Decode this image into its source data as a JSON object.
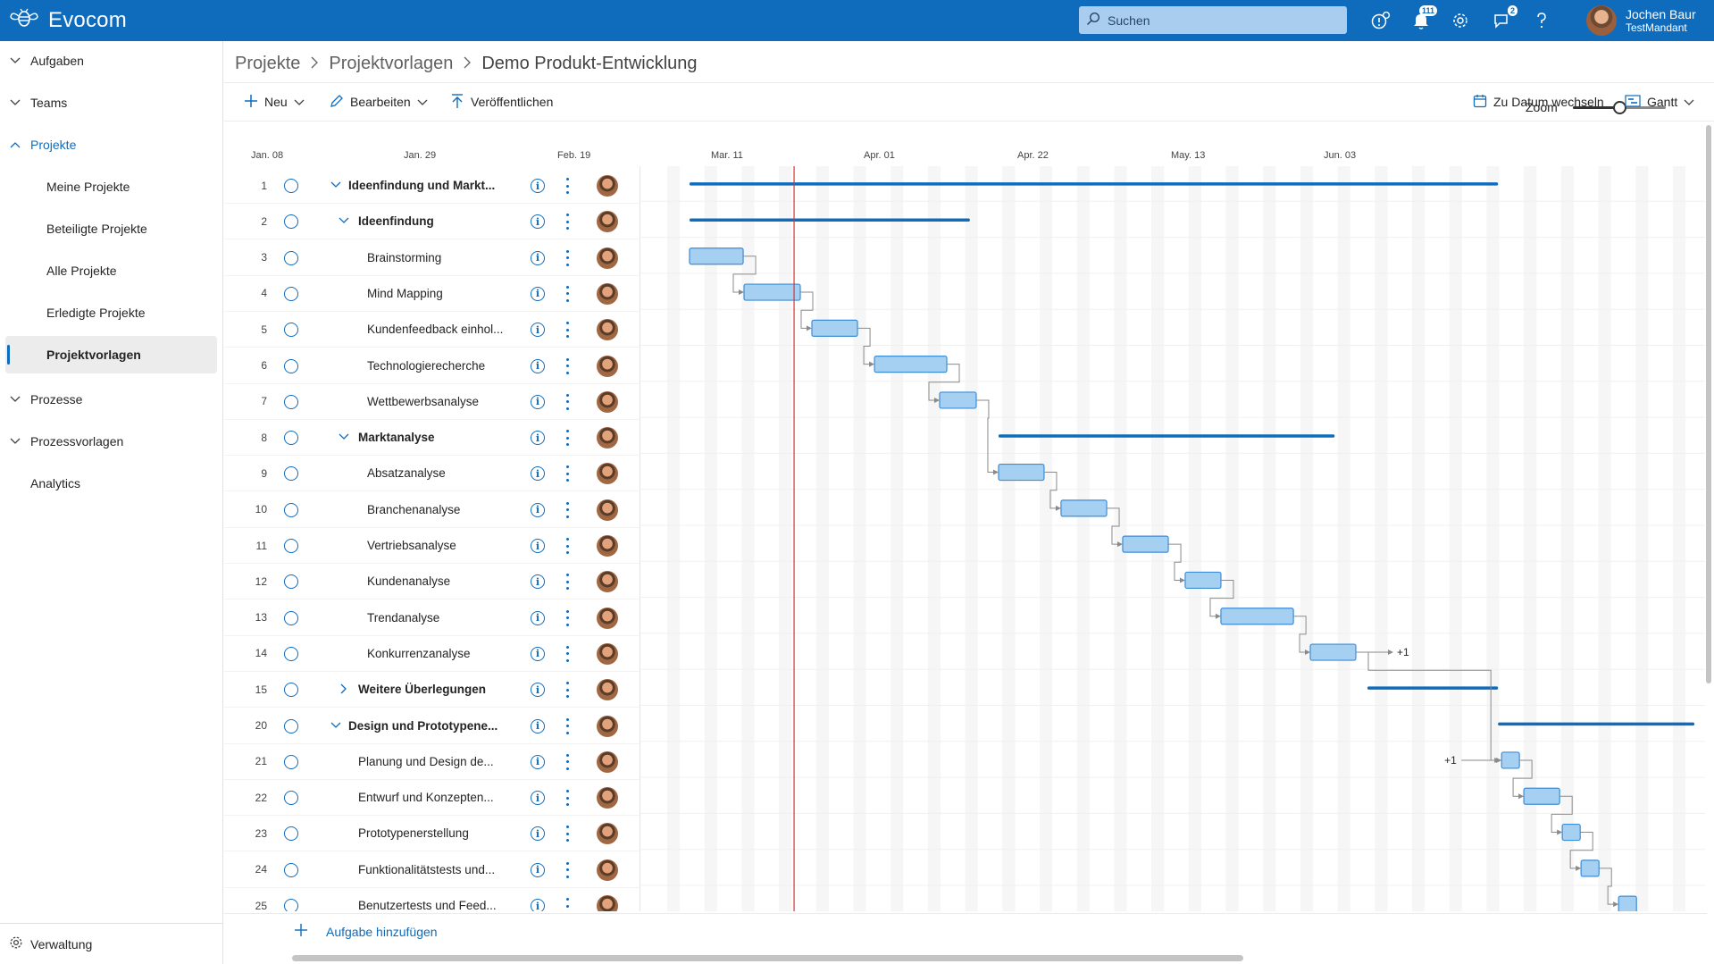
{
  "app": {
    "name": "Evocom",
    "logo_icon": "bee-logo-icon"
  },
  "header": {
    "search_placeholder": "Suchen",
    "icons": [
      {
        "name": "release-notes-icon",
        "badge": ""
      },
      {
        "name": "notifications-icon",
        "badge": "111"
      },
      {
        "name": "settings-gear-icon",
        "badge": ""
      },
      {
        "name": "feedback-icon",
        "badge": "2"
      },
      {
        "name": "help-icon",
        "badge": ""
      }
    ],
    "user": {
      "name": "Jochen Baur",
      "tenant": "TestMandant"
    }
  },
  "sidebar": {
    "items": [
      {
        "label": "Aufgaben",
        "expanded": false
      },
      {
        "label": "Teams",
        "expanded": false
      },
      {
        "label": "Projekte",
        "expanded": true
      },
      {
        "label": "Meine Projekte"
      },
      {
        "label": "Beteiligte Projekte"
      },
      {
        "label": "Alle Projekte"
      },
      {
        "label": "Erledigte Projekte"
      },
      {
        "label": "Projektvorlagen",
        "active": true
      },
      {
        "label": "Prozesse",
        "expanded": false
      },
      {
        "label": "Prozessvorlagen",
        "expanded": false
      },
      {
        "label": "Analytics"
      }
    ],
    "footer_label": "Verwaltung"
  },
  "breadcrumb": [
    "Projekte",
    "Projektvorlagen",
    "Demo Produkt-Entwicklung"
  ],
  "toolbar": {
    "new_label": "Neu",
    "edit_label": "Bearbeiten",
    "publish_label": "Veröffentlichen",
    "zoom_label": "Zoom",
    "zoom_value": 0.5,
    "goto_date_label": "Zu Datum wechseln",
    "view_label": "Gantt"
  },
  "timeline": {
    "date_labels": [
      "Jan. 08",
      "Jan. 29",
      "Feb. 19",
      "Mar. 11",
      "Apr. 01",
      "Apr. 22",
      "May. 13",
      "Jun. 03"
    ]
  },
  "tasks": [
    {
      "num": "1",
      "name": "Ideenfindung und Markt...",
      "level": 0,
      "group": true,
      "expanded": true
    },
    {
      "num": "2",
      "name": "Ideenfindung",
      "level": 1,
      "group": true,
      "expanded": true
    },
    {
      "num": "3",
      "name": "Brainstorming",
      "level": 2
    },
    {
      "num": "4",
      "name": "Mind Mapping",
      "level": 2
    },
    {
      "num": "5",
      "name": "Kundenfeedback einhol...",
      "level": 2
    },
    {
      "num": "6",
      "name": "Technologierecherche",
      "level": 2
    },
    {
      "num": "7",
      "name": "Wettbewerbsanalyse",
      "level": 2
    },
    {
      "num": "8",
      "name": "Marktanalyse",
      "level": 1,
      "group": true,
      "expanded": true
    },
    {
      "num": "9",
      "name": "Absatzanalyse",
      "level": 2
    },
    {
      "num": "10",
      "name": "Branchenanalyse",
      "level": 2
    },
    {
      "num": "11",
      "name": "Vertriebsanalyse",
      "level": 2
    },
    {
      "num": "12",
      "name": "Kundenanalyse",
      "level": 2
    },
    {
      "num": "13",
      "name": "Trendanalyse",
      "level": 2
    },
    {
      "num": "14",
      "name": "Konkurrenzanalyse",
      "level": 2
    },
    {
      "num": "15",
      "name": "Weitere Überlegungen",
      "level": 1,
      "group": true,
      "expanded": false
    },
    {
      "num": "20",
      "name": "Design und Prototypene...",
      "level": 0,
      "group": true,
      "expanded": true
    },
    {
      "num": "21",
      "name": "Planung und Design de...",
      "level": 1
    },
    {
      "num": "22",
      "name": "Entwurf und Konzepten...",
      "level": 1
    },
    {
      "num": "23",
      "name": "Prototypenerstellung",
      "level": 1
    },
    {
      "num": "24",
      "name": "Funktionalitätstests und...",
      "level": 1
    },
    {
      "num": "25",
      "name": "Benutzertests und Feed...",
      "level": 1
    }
  ],
  "gantt_bars": [
    {
      "row": 0,
      "type": "summary",
      "start": 0.0466,
      "end": 0.8137
    },
    {
      "row": 1,
      "type": "summary",
      "start": 0.0466,
      "end": 0.3126
    },
    {
      "row": 2,
      "type": "task",
      "start": 0.0466,
      "end": 0.0975
    },
    {
      "row": 3,
      "type": "task",
      "start": 0.0983,
      "end": 0.1517
    },
    {
      "row": 4,
      "type": "task",
      "start": 0.1627,
      "end": 0.206
    },
    {
      "row": 5,
      "type": "task",
      "start": 0.2221,
      "end": 0.2907
    },
    {
      "row": 6,
      "type": "task",
      "start": 0.2839,
      "end": 0.3186
    },
    {
      "row": 7,
      "type": "summary",
      "start": 0.3398,
      "end": 0.6587
    },
    {
      "row": 8,
      "type": "task",
      "start": 0.3398,
      "end": 0.383
    },
    {
      "row": 9,
      "type": "task",
      "start": 0.3991,
      "end": 0.4424
    },
    {
      "row": 10,
      "type": "task",
      "start": 0.4576,
      "end": 0.5009
    },
    {
      "row": 11,
      "type": "task",
      "start": 0.5169,
      "end": 0.5508
    },
    {
      "row": 12,
      "type": "task",
      "start": 0.5508,
      "end": 0.6196
    },
    {
      "row": 13,
      "type": "task",
      "start": 0.6356,
      "end": 0.6788
    },
    {
      "row": 14,
      "type": "summary",
      "start": 0.6898,
      "end": 0.8137
    },
    {
      "row": 15,
      "type": "summary",
      "start": 0.8137,
      "end": 1.0
    },
    {
      "row": 16,
      "type": "task",
      "start": 0.8171,
      "end": 0.834
    },
    {
      "row": 17,
      "type": "task",
      "start": 0.8382,
      "end": 0.8722
    },
    {
      "row": 18,
      "type": "task",
      "start": 0.8747,
      "end": 0.8917
    },
    {
      "row": 19,
      "type": "task",
      "start": 0.8925,
      "end": 0.9095
    },
    {
      "row": 20,
      "type": "task",
      "start": 0.9281,
      "end": 0.9451
    }
  ],
  "gantt_overflow_labels": [
    {
      "row": 13,
      "text": "+1",
      "side": "after"
    },
    {
      "row": 16,
      "text": "+1",
      "side": "before"
    }
  ],
  "today_marker": 0.1458,
  "add_task_label": "Aufgabe hinzufügen",
  "colors": {
    "brand": "#0f6cbd",
    "bar_fill": "#a6d0f2",
    "bar_border": "#3d8cd6",
    "summary": "#0f6cbd",
    "today": "#d13438"
  }
}
